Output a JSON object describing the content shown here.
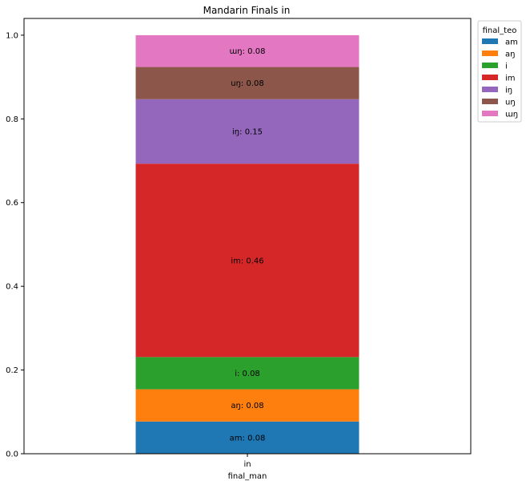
{
  "chart_data": {
    "type": "bar",
    "stacked": true,
    "title": "Mandarin Finals in",
    "xlabel": "final_man",
    "ylabel": "",
    "categories": [
      "in"
    ],
    "ylim": [
      0,
      1.04
    ],
    "yticks": [
      "0.0",
      "0.2",
      "0.4",
      "0.6",
      "0.8",
      "1.0"
    ],
    "grid": false,
    "legend": {
      "title": "final_teo",
      "placement": "outside-top-right"
    },
    "series": [
      {
        "name": "am",
        "values": [
          0.077
        ],
        "label": "am: 0.08",
        "color": "#1f77b4"
      },
      {
        "name": "aŋ",
        "values": [
          0.077
        ],
        "label": "aŋ: 0.08",
        "color": "#ff7f0e"
      },
      {
        "name": "i",
        "values": [
          0.077
        ],
        "label": "i: 0.08",
        "color": "#2ca02c"
      },
      {
        "name": "im",
        "values": [
          0.462
        ],
        "label": "im: 0.46",
        "color": "#d62728"
      },
      {
        "name": "iŋ",
        "values": [
          0.154
        ],
        "label": "iŋ: 0.15",
        "color": "#9467bd"
      },
      {
        "name": "uŋ",
        "values": [
          0.077
        ],
        "label": "uŋ: 0.08",
        "color": "#8c564b"
      },
      {
        "name": "ɯŋ",
        "values": [
          0.076
        ],
        "label": "ɯŋ: 0.08",
        "color": "#e377c2"
      }
    ]
  }
}
